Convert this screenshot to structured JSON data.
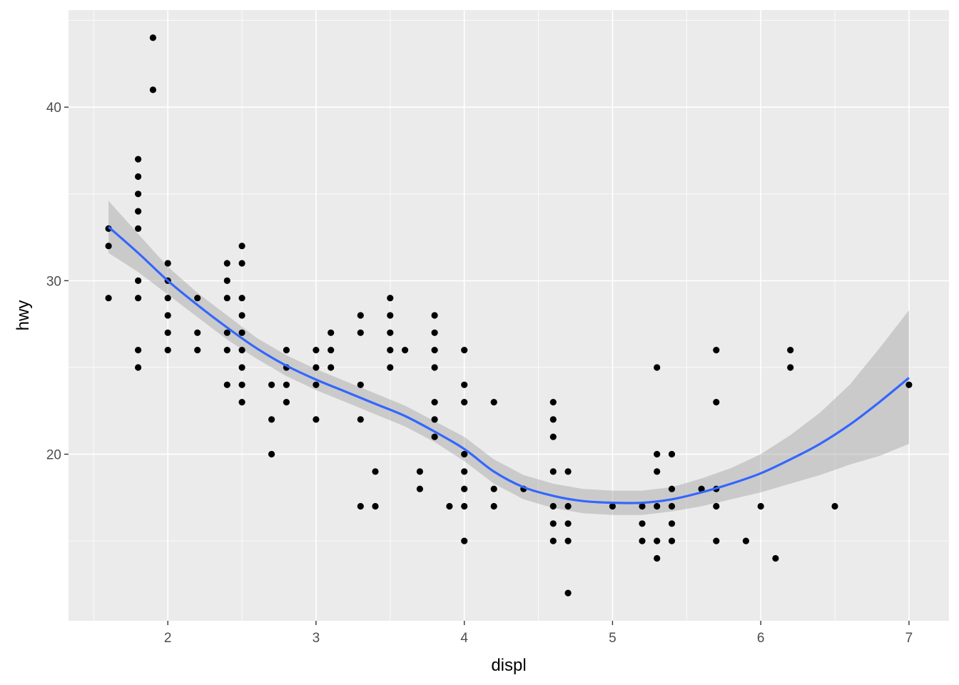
{
  "chart_data": {
    "type": "scatter",
    "title": "",
    "xlabel": "displ",
    "ylabel": "hwy",
    "xlim": [
      1.33,
      7.27
    ],
    "ylim": [
      10.4,
      45.6
    ],
    "x_ticks": [
      2,
      3,
      4,
      5,
      6,
      7
    ],
    "y_ticks": [
      20,
      30,
      40
    ],
    "x_tick_labels": [
      "2",
      "3",
      "4",
      "5",
      "6",
      "7"
    ],
    "y_tick_labels": [
      "20",
      "30",
      "40"
    ],
    "grid": true,
    "legend": "none",
    "points": [
      [
        1.6,
        33
      ],
      [
        1.6,
        32
      ],
      [
        1.6,
        29
      ],
      [
        1.8,
        37
      ],
      [
        1.8,
        36
      ],
      [
        1.8,
        35
      ],
      [
        1.8,
        34
      ],
      [
        1.8,
        33
      ],
      [
        1.8,
        30
      ],
      [
        1.8,
        29
      ],
      [
        1.8,
        26
      ],
      [
        1.8,
        25
      ],
      [
        1.9,
        44
      ],
      [
        1.9,
        41
      ],
      [
        2.0,
        31
      ],
      [
        2.0,
        30
      ],
      [
        2.0,
        29
      ],
      [
        2.0,
        28
      ],
      [
        2.0,
        27
      ],
      [
        2.0,
        26
      ],
      [
        2.2,
        29
      ],
      [
        2.2,
        27
      ],
      [
        2.2,
        26
      ],
      [
        2.4,
        31
      ],
      [
        2.4,
        30
      ],
      [
        2.4,
        29
      ],
      [
        2.4,
        27
      ],
      [
        2.4,
        26
      ],
      [
        2.4,
        24
      ],
      [
        2.5,
        32
      ],
      [
        2.5,
        31
      ],
      [
        2.5,
        29
      ],
      [
        2.5,
        28
      ],
      [
        2.5,
        27
      ],
      [
        2.5,
        26
      ],
      [
        2.5,
        25
      ],
      [
        2.5,
        24
      ],
      [
        2.5,
        23
      ],
      [
        2.7,
        24
      ],
      [
        2.7,
        22
      ],
      [
        2.7,
        20
      ],
      [
        2.8,
        26
      ],
      [
        2.8,
        25
      ],
      [
        2.8,
        24
      ],
      [
        2.8,
        23
      ],
      [
        3.0,
        26
      ],
      [
        3.0,
        25
      ],
      [
        3.0,
        24
      ],
      [
        3.0,
        22
      ],
      [
        3.1,
        27
      ],
      [
        3.1,
        26
      ],
      [
        3.1,
        25
      ],
      [
        3.3,
        28
      ],
      [
        3.3,
        27
      ],
      [
        3.3,
        24
      ],
      [
        3.3,
        22
      ],
      [
        3.3,
        17
      ],
      [
        3.4,
        19
      ],
      [
        3.4,
        17
      ],
      [
        3.5,
        29
      ],
      [
        3.5,
        28
      ],
      [
        3.5,
        27
      ],
      [
        3.5,
        26
      ],
      [
        3.5,
        25
      ],
      [
        3.6,
        26
      ],
      [
        3.7,
        19
      ],
      [
        3.7,
        18
      ],
      [
        3.8,
        28
      ],
      [
        3.8,
        27
      ],
      [
        3.8,
        26
      ],
      [
        3.8,
        25
      ],
      [
        3.8,
        23
      ],
      [
        3.8,
        22
      ],
      [
        3.8,
        21
      ],
      [
        3.9,
        17
      ],
      [
        4.0,
        26
      ],
      [
        4.0,
        24
      ],
      [
        4.0,
        23
      ],
      [
        4.0,
        20
      ],
      [
        4.0,
        19
      ],
      [
        4.0,
        18
      ],
      [
        4.0,
        17
      ],
      [
        4.0,
        15
      ],
      [
        4.2,
        23
      ],
      [
        4.2,
        18
      ],
      [
        4.2,
        17
      ],
      [
        4.4,
        18
      ],
      [
        4.6,
        23
      ],
      [
        4.6,
        22
      ],
      [
        4.6,
        21
      ],
      [
        4.6,
        19
      ],
      [
        4.6,
        17
      ],
      [
        4.6,
        16
      ],
      [
        4.6,
        15
      ],
      [
        4.7,
        19
      ],
      [
        4.7,
        17
      ],
      [
        4.7,
        16
      ],
      [
        4.7,
        15
      ],
      [
        4.7,
        12
      ],
      [
        5.0,
        17
      ],
      [
        5.2,
        17
      ],
      [
        5.2,
        16
      ],
      [
        5.2,
        15
      ],
      [
        5.3,
        25
      ],
      [
        5.3,
        20
      ],
      [
        5.3,
        19
      ],
      [
        5.3,
        17
      ],
      [
        5.3,
        15
      ],
      [
        5.3,
        14
      ],
      [
        5.4,
        20
      ],
      [
        5.4,
        18
      ],
      [
        5.4,
        17
      ],
      [
        5.4,
        16
      ],
      [
        5.4,
        15
      ],
      [
        5.6,
        18
      ],
      [
        5.7,
        26
      ],
      [
        5.7,
        23
      ],
      [
        5.7,
        18
      ],
      [
        5.7,
        17
      ],
      [
        5.7,
        15
      ],
      [
        5.9,
        15
      ],
      [
        6.0,
        17
      ],
      [
        6.1,
        14
      ],
      [
        6.2,
        26
      ],
      [
        6.2,
        25
      ],
      [
        6.5,
        17
      ],
      [
        7.0,
        24
      ]
    ],
    "smooth": {
      "method": "loess",
      "color": "#3366FF",
      "ribbon_color": "#999999",
      "x": [
        1.6,
        1.8,
        2.0,
        2.2,
        2.4,
        2.6,
        2.8,
        3.0,
        3.2,
        3.4,
        3.6,
        3.8,
        4.0,
        4.2,
        4.4,
        4.6,
        4.8,
        5.0,
        5.2,
        5.4,
        5.6,
        5.8,
        6.0,
        6.2,
        6.4,
        6.6,
        6.8,
        7.0
      ],
      "y": [
        33.1,
        31.6,
        30.0,
        28.6,
        27.3,
        26.1,
        25.1,
        24.3,
        23.6,
        22.9,
        22.2,
        21.3,
        20.3,
        19.0,
        18.1,
        17.6,
        17.3,
        17.2,
        17.2,
        17.4,
        17.8,
        18.3,
        18.9,
        19.7,
        20.6,
        21.7,
        23.0,
        24.4
      ],
      "lower": [
        31.6,
        30.5,
        29.2,
        27.9,
        26.6,
        25.5,
        24.5,
        23.7,
        23.0,
        22.3,
        21.6,
        20.7,
        19.6,
        18.3,
        17.4,
        16.9,
        16.6,
        16.5,
        16.5,
        16.7,
        17.0,
        17.4,
        17.8,
        18.3,
        18.8,
        19.4,
        19.9,
        20.6
      ],
      "upper": [
        34.6,
        32.7,
        30.8,
        29.3,
        28.0,
        26.7,
        25.7,
        24.9,
        24.2,
        23.5,
        22.8,
        21.9,
        21.0,
        19.7,
        18.8,
        18.3,
        18.0,
        17.9,
        17.9,
        18.1,
        18.6,
        19.2,
        20.0,
        21.1,
        22.4,
        24.0,
        26.1,
        28.3
      ]
    },
    "colors": {
      "panel_background": "#EBEBEB",
      "grid_major": "#FFFFFF",
      "point": "#000000",
      "tick_label": "#4D4D4D",
      "axis_title": "#000000"
    }
  }
}
